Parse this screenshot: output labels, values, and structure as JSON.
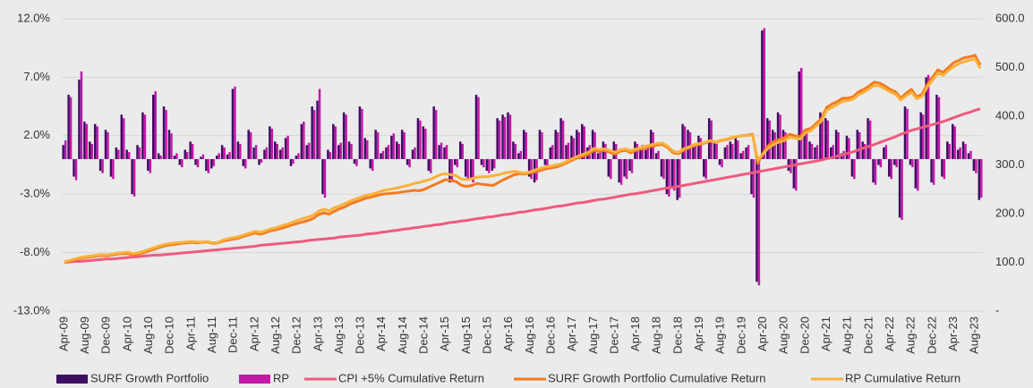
{
  "chart_data": {
    "type": "combo",
    "categories": [
      "Apr-09",
      null,
      null,
      null,
      "Aug-09",
      null,
      null,
      null,
      "Dec-09",
      null,
      null,
      null,
      "Apr-10",
      null,
      null,
      null,
      "Aug-10",
      null,
      null,
      null,
      "Dec-10",
      null,
      null,
      null,
      "Apr-11",
      null,
      null,
      null,
      "Aug-11",
      null,
      null,
      null,
      "Dec-11",
      null,
      null,
      null,
      "Apr-12",
      null,
      null,
      null,
      "Aug-12",
      null,
      null,
      null,
      "Dec-12",
      null,
      null,
      null,
      "Apr-13",
      null,
      null,
      null,
      "Aug-13",
      null,
      null,
      null,
      "Dec-13",
      null,
      null,
      null,
      "Apr-14",
      null,
      null,
      null,
      "Aug-14",
      null,
      null,
      null,
      "Dec-14",
      null,
      null,
      null,
      "Apr-15",
      null,
      null,
      null,
      "Aug-15",
      null,
      null,
      null,
      "Dec-15",
      null,
      null,
      null,
      "Apr-16",
      null,
      null,
      null,
      "Aug-16",
      null,
      null,
      null,
      "Dec-16",
      null,
      null,
      null,
      "Apr-17",
      null,
      null,
      null,
      "Aug-17",
      null,
      null,
      null,
      "Dec-17",
      null,
      null,
      null,
      "Apr-18",
      null,
      null,
      null,
      "Aug-18",
      null,
      null,
      null,
      "Dec-18",
      null,
      null,
      null,
      "Apr-19",
      null,
      null,
      null,
      "Aug-19",
      null,
      null,
      null,
      "Dec-19",
      null,
      null,
      null,
      "Apr-20",
      null,
      null,
      null,
      "Aug-20",
      null,
      null,
      null,
      "Dec-20",
      null,
      null,
      null,
      "Apr-21",
      null,
      null,
      null,
      "Aug-21",
      null,
      null,
      null,
      "Dec-21",
      null,
      null,
      null,
      "Apr-22",
      null,
      null,
      null,
      "Aug-22",
      null,
      null,
      null,
      "Dec-22",
      null,
      null,
      null,
      "Apr-23",
      null,
      null,
      null,
      "Aug-23",
      null
    ],
    "ylim": [
      -13,
      12
    ],
    "yticks": [
      {
        "value": -13,
        "label": "-13.0%"
      },
      {
        "value": -8,
        "label": "-8.0%"
      },
      {
        "value": -3,
        "label": "-3.0%"
      },
      {
        "value": 2,
        "label": "2.0%"
      },
      {
        "value": 7,
        "label": "7.0%"
      },
      {
        "value": 12,
        "label": "12.0%"
      }
    ],
    "y2lim": [
      0,
      600
    ],
    "y2ticks": [
      {
        "value": 0,
        "label": "-"
      },
      {
        "value": 100,
        "label": "100.0"
      },
      {
        "value": 200,
        "label": "200.0"
      },
      {
        "value": 300,
        "label": "300.0"
      },
      {
        "value": 400,
        "label": "400.0"
      },
      {
        "value": 500,
        "label": "500.0"
      },
      {
        "value": 600,
        "label": "600.0"
      }
    ],
    "grid": true,
    "series": [
      {
        "name": "SURF Growth Portfolio",
        "type": "bar",
        "color": "#3d0f63",
        "values": [
          1.2,
          5.5,
          -1.5,
          6.8,
          3.2,
          1.5,
          3.0,
          -1.0,
          2.5,
          -1.5,
          1.0,
          3.8,
          0.8,
          -3.0,
          1.2,
          4.0,
          -1.0,
          5.5,
          0.5,
          4.5,
          2.5,
          0.3,
          -0.5,
          0.8,
          1.5,
          -0.5,
          0.2,
          -1.0,
          -0.8,
          0.3,
          1.2,
          0.4,
          6.0,
          1.5,
          -0.6,
          2.5,
          1.0,
          -0.5,
          0.8,
          2.8,
          1.5,
          0.8,
          1.8,
          -0.6,
          0.3,
          3.0,
          1.2,
          4.5,
          5.0,
          -3.0,
          0.8,
          3.0,
          1.2,
          4.0,
          1.5,
          -0.4,
          4.5,
          1.8,
          -0.8,
          2.5,
          0.5,
          1.0,
          2.0,
          1.5,
          2.5,
          -0.5,
          0.8,
          3.5,
          2.8,
          -1.0,
          4.5,
          1.2,
          1.0,
          -2.0,
          -0.5,
          1.5,
          -1.5,
          -1.8,
          5.5,
          -0.5,
          -1.0,
          -1.0,
          3.5,
          3.8,
          4.0,
          1.5,
          0.5,
          2.5,
          -1.5,
          -2.0,
          2.5,
          -0.5,
          1.0,
          2.5,
          3.5,
          1.2,
          2.0,
          2.5,
          3.0,
          1.0,
          2.5,
          0.5,
          1.5,
          -1.5,
          1.5,
          -2.0,
          -1.5,
          -1.0,
          1.5,
          1.0,
          0.8,
          2.5,
          0.5,
          -1.5,
          -3.0,
          -2.5,
          -3.5,
          3.0,
          2.5,
          1.0,
          2.0,
          -1.5,
          3.5,
          1.5,
          -0.5,
          1.0,
          1.5,
          1.8,
          0.5,
          1.0,
          -3.0,
          -10.5,
          11.0,
          3.5,
          2.5,
          4.0,
          2.5,
          -1.0,
          -2.5,
          7.5,
          2.5,
          1.5,
          1.0,
          4.0,
          3.5,
          1.0,
          2.5,
          0.5,
          2.0,
          -1.5,
          2.5,
          1.5,
          3.5,
          -2.0,
          -0.5,
          1.0,
          -1.5,
          -0.5,
          -5.0,
          4.5,
          -0.5,
          -2.5,
          4.0,
          7.0,
          -2.0,
          5.5,
          -1.5,
          1.5,
          3.0,
          0.8,
          1.5,
          0.5,
          -1.0,
          -3.5
        ]
      },
      {
        "name": "RP",
        "type": "bar",
        "color": "#c418a8",
        "values": [
          1.6,
          5.3,
          -1.8,
          7.5,
          3.0,
          1.3,
          2.8,
          -1.2,
          2.3,
          -1.7,
          0.8,
          3.5,
          0.6,
          -3.2,
          1.0,
          3.8,
          -1.2,
          5.8,
          0.3,
          4.2,
          2.2,
          0.5,
          -0.7,
          0.6,
          1.3,
          -0.7,
          0.4,
          -1.2,
          -0.6,
          0.5,
          1.0,
          0.6,
          6.2,
          1.3,
          -0.8,
          2.3,
          1.2,
          -0.3,
          1.0,
          2.6,
          1.3,
          1.0,
          2.0,
          -0.4,
          0.5,
          3.2,
          1.4,
          4.2,
          6.0,
          -3.3,
          0.6,
          2.8,
          1.4,
          3.8,
          1.3,
          -0.6,
          4.3,
          1.6,
          -1.0,
          2.3,
          0.7,
          1.2,
          2.2,
          1.3,
          2.3,
          -0.7,
          1.0,
          3.3,
          2.6,
          -1.2,
          4.2,
          1.4,
          1.2,
          -1.8,
          -0.7,
          1.3,
          -1.7,
          -2.0,
          5.3,
          -0.7,
          -1.2,
          -0.8,
          3.3,
          3.6,
          3.8,
          1.3,
          0.7,
          2.3,
          -1.7,
          -1.8,
          2.3,
          -0.7,
          1.2,
          2.3,
          3.3,
          1.4,
          1.8,
          2.3,
          2.8,
          1.2,
          2.3,
          0.7,
          1.3,
          -1.7,
          1.3,
          -2.2,
          -1.7,
          -1.2,
          1.3,
          1.2,
          1.0,
          2.3,
          0.7,
          -1.7,
          -3.2,
          -2.7,
          -3.3,
          2.8,
          2.3,
          1.2,
          1.8,
          -1.7,
          3.3,
          1.3,
          -0.7,
          1.2,
          1.3,
          1.6,
          0.7,
          1.2,
          -3.3,
          -10.8,
          11.2,
          3.3,
          2.3,
          3.8,
          2.3,
          -1.2,
          -2.7,
          7.8,
          2.3,
          1.3,
          1.2,
          3.8,
          3.3,
          1.2,
          2.3,
          0.7,
          1.8,
          -1.7,
          2.3,
          1.3,
          3.3,
          -2.2,
          -0.7,
          1.2,
          -1.7,
          -0.7,
          -5.2,
          4.3,
          -0.7,
          -2.7,
          3.8,
          7.2,
          -2.2,
          5.3,
          -1.7,
          1.3,
          2.8,
          1.0,
          1.3,
          0.7,
          -1.2,
          -3.3
        ]
      },
      {
        "name": "CPI +5% Cumulative Return",
        "type": "line",
        "axis": "y2",
        "color": "#ef5a7f",
        "values": [
          100,
          101,
          102,
          102,
          103,
          104,
          105,
          106,
          107,
          107,
          108,
          109,
          110,
          111,
          112,
          113,
          114,
          115,
          115,
          116,
          117,
          118,
          119,
          120,
          121,
          122,
          123,
          124,
          125,
          126,
          127,
          128,
          129,
          130,
          131,
          132,
          133,
          135,
          136,
          137,
          138,
          139,
          140,
          141,
          142,
          143,
          145,
          146,
          147,
          148,
          149,
          150,
          152,
          153,
          154,
          155,
          156,
          158,
          159,
          160,
          162,
          163,
          165,
          166,
          168,
          169,
          171,
          172,
          174,
          175,
          177,
          178,
          180,
          182,
          183,
          185,
          186,
          188,
          190,
          191,
          193,
          194,
          196,
          198,
          199,
          201,
          203,
          204,
          206,
          208,
          209,
          211,
          213,
          215,
          216,
          218,
          220,
          222,
          223,
          225,
          227,
          229,
          230,
          232,
          234,
          236,
          238,
          240,
          241,
          243,
          245,
          247,
          249,
          251,
          253,
          254,
          256,
          258,
          260,
          262,
          264,
          266,
          268,
          270,
          272,
          274,
          276,
          278,
          280,
          282,
          284,
          286,
          288,
          290,
          292,
          294,
          296,
          298,
          300,
          302,
          304,
          306,
          308,
          310,
          313,
          315,
          318,
          321,
          324,
          327,
          331,
          335,
          338,
          342,
          346,
          350,
          354,
          358,
          363,
          367,
          371,
          374,
          377,
          380,
          383,
          386,
          389,
          393,
          397,
          401,
          405,
          408,
          412,
          415
        ]
      },
      {
        "name": "SURF Growth Portfolio Cumulative Return",
        "type": "line",
        "axis": "y2",
        "color": "#f47b20",
        "values": [
          100,
          103,
          106,
          108,
          110,
          111,
          113,
          114,
          113,
          115,
          117,
          118,
          118,
          115,
          117,
          120,
          124,
          127,
          131,
          134,
          136,
          137,
          139,
          140,
          141,
          140,
          141,
          142,
          139,
          140,
          144,
          146,
          148,
          150,
          154,
          157,
          160,
          158,
          161,
          165,
          167,
          170,
          173,
          177,
          180,
          183,
          186,
          190,
          198,
          202,
          199,
          205,
          210,
          214,
          220,
          224,
          228,
          232,
          234,
          237,
          240,
          241,
          242,
          243,
          245,
          246,
          248,
          247,
          250,
          255,
          260,
          265,
          270,
          268,
          266,
          258,
          256,
          258,
          262,
          260,
          259,
          258,
          264,
          270,
          275,
          280,
          282,
          281,
          284,
          286,
          289,
          292,
          294,
          296,
          300,
          305,
          310,
          315,
          318,
          322,
          330,
          328,
          330,
          326,
          322,
          328,
          330,
          325,
          330,
          333,
          336,
          338,
          341,
          342,
          335,
          325,
          323,
          330,
          335,
          340,
          342,
          345,
          349,
          346,
          350,
          352,
          355,
          358,
          360,
          361,
          363,
          303,
          325,
          340,
          348,
          352,
          356,
          363,
          360,
          358,
          372,
          375,
          385,
          395,
          418,
          425,
          430,
          437,
          437,
          440,
          450,
          455,
          462,
          470,
          468,
          462,
          455,
          450,
          437,
          447,
          455,
          440,
          445,
          465,
          480,
          495,
          490,
          500,
          510,
          515,
          520,
          522,
          525,
          505
        ]
      },
      {
        "name": "RP Cumulative Return",
        "type": "line",
        "axis": "y2",
        "color": "#fbb13c",
        "values": [
          101,
          104,
          107,
          110,
          112,
          113,
          115,
          116,
          115,
          117,
          119,
          120,
          121,
          118,
          120,
          123,
          127,
          130,
          134,
          137,
          139,
          140,
          141,
          142,
          143,
          142,
          142,
          143,
          140,
          141,
          146,
          149,
          151,
          153,
          157,
          160,
          164,
          162,
          165,
          169,
          171,
          175,
          178,
          182,
          186,
          190,
          193,
          197,
          205,
          209,
          206,
          212,
          216,
          221,
          226,
          230,
          234,
          238,
          240,
          243,
          247,
          249,
          251,
          253,
          256,
          258,
          262,
          264,
          267,
          270,
          275,
          280,
          282,
          280,
          278,
          271,
          270,
          272,
          275,
          276,
          276,
          278,
          280,
          283,
          285,
          287,
          285,
          283,
          286,
          290,
          293,
          296,
          298,
          300,
          303,
          308,
          313,
          318,
          322,
          326,
          334,
          332,
          333,
          330,
          326,
          331,
          333,
          329,
          333,
          336,
          339,
          342,
          344,
          345,
          338,
          328,
          326,
          333,
          337,
          342,
          344,
          346,
          350,
          347,
          351,
          353,
          356,
          358,
          360,
          360,
          362,
          310,
          323,
          335,
          342,
          347,
          350,
          357,
          355,
          353,
          366,
          370,
          380,
          390,
          412,
          418,
          424,
          431,
          432,
          435,
          444,
          449,
          456,
          463,
          462,
          456,
          450,
          445,
          433,
          442,
          449,
          436,
          440,
          460,
          474,
          488,
          484,
          494,
          502,
          508,
          512,
          515,
          518,
          498
        ]
      }
    ]
  }
}
